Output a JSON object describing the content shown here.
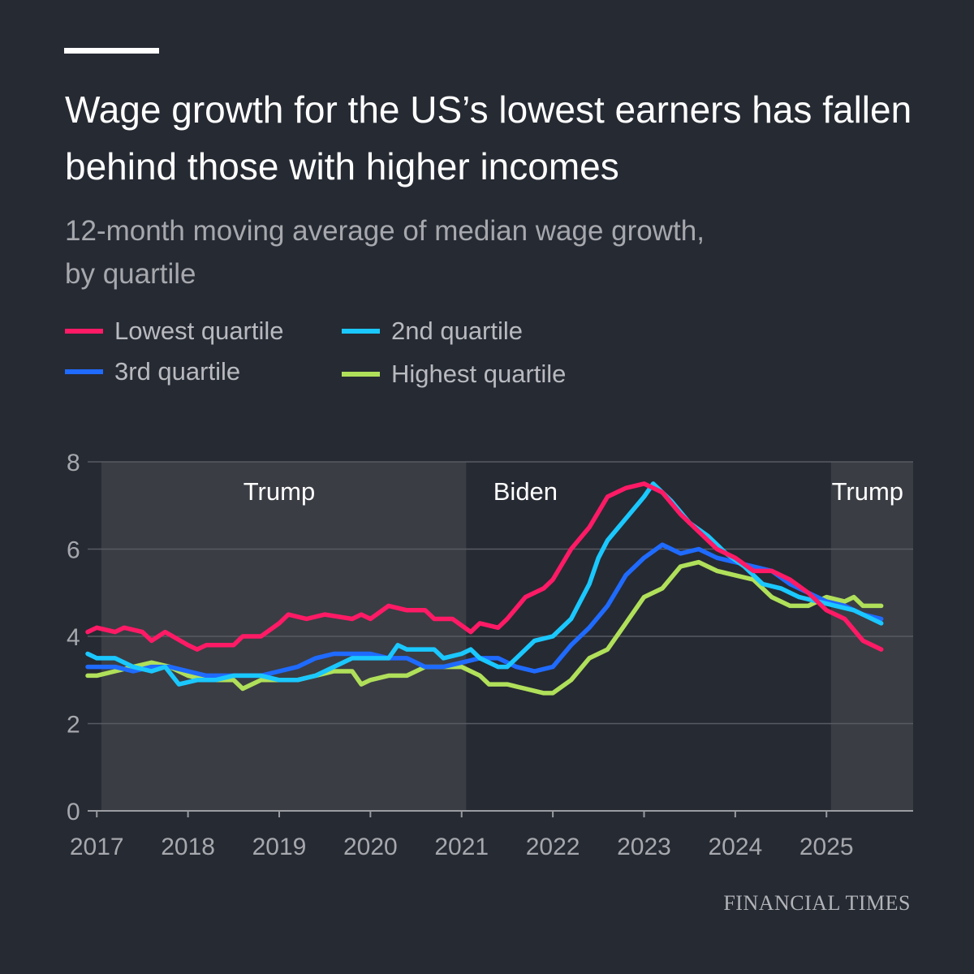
{
  "header": {
    "title": "Wage growth for the US’s lowest earners has fallen behind those with higher incomes",
    "subtitle_line1": "12-month moving average of median wage growth,",
    "subtitle_line2": "by quartile"
  },
  "source": "FINANCIAL TIMES",
  "colors": {
    "background": "#262a33",
    "lowest": "#ff1a66",
    "second": "#1ac8ff",
    "third": "#1f6bff",
    "highest": "#b0e05a",
    "shade": "#3a3d44"
  },
  "chart_data": {
    "type": "line",
    "title": "Wage growth for the US’s lowest earners has fallen behind those with higher incomes",
    "subtitle": "12-month moving average of median wage growth, by quartile",
    "xlabel": "",
    "ylabel": "",
    "xlim": [
      2016.9,
      2025.95
    ],
    "ylim": [
      0,
      8
    ],
    "x_ticks": [
      2017,
      2018,
      2019,
      2020,
      2021,
      2022,
      2023,
      2024,
      2025
    ],
    "y_ticks": [
      0,
      2,
      4,
      6,
      8
    ],
    "grid": "horizontal",
    "legend_position": "top-left",
    "periods": [
      {
        "label": "Trump",
        "start": 2017.05,
        "end": 2021.05,
        "shaded": true
      },
      {
        "label": "Biden",
        "start": 2021.05,
        "end": 2025.05,
        "shaded": false
      },
      {
        "label": "Trump",
        "start": 2025.05,
        "end": 2025.95,
        "shaded": true
      }
    ],
    "series": [
      {
        "name": "Lowest quartile",
        "color": "#ff1a66",
        "points": [
          [
            2016.9,
            4.1
          ],
          [
            2017.0,
            4.2
          ],
          [
            2017.2,
            4.1
          ],
          [
            2017.3,
            4.2
          ],
          [
            2017.5,
            4.1
          ],
          [
            2017.6,
            3.9
          ],
          [
            2017.75,
            4.1
          ],
          [
            2018.0,
            3.8
          ],
          [
            2018.1,
            3.7
          ],
          [
            2018.2,
            3.8
          ],
          [
            2018.5,
            3.8
          ],
          [
            2018.6,
            4.0
          ],
          [
            2018.8,
            4.0
          ],
          [
            2019.0,
            4.3
          ],
          [
            2019.1,
            4.5
          ],
          [
            2019.3,
            4.4
          ],
          [
            2019.5,
            4.5
          ],
          [
            2019.8,
            4.4
          ],
          [
            2019.9,
            4.5
          ],
          [
            2020.0,
            4.4
          ],
          [
            2020.2,
            4.7
          ],
          [
            2020.4,
            4.6
          ],
          [
            2020.6,
            4.6
          ],
          [
            2020.7,
            4.4
          ],
          [
            2020.9,
            4.4
          ],
          [
            2021.1,
            4.1
          ],
          [
            2021.2,
            4.3
          ],
          [
            2021.4,
            4.2
          ],
          [
            2021.5,
            4.4
          ],
          [
            2021.7,
            4.9
          ],
          [
            2021.9,
            5.1
          ],
          [
            2022.0,
            5.3
          ],
          [
            2022.2,
            6.0
          ],
          [
            2022.4,
            6.5
          ],
          [
            2022.6,
            7.2
          ],
          [
            2022.8,
            7.4
          ],
          [
            2023.0,
            7.5
          ],
          [
            2023.2,
            7.3
          ],
          [
            2023.4,
            6.8
          ],
          [
            2023.6,
            6.4
          ],
          [
            2023.8,
            6.0
          ],
          [
            2024.0,
            5.8
          ],
          [
            2024.2,
            5.5
          ],
          [
            2024.4,
            5.5
          ],
          [
            2024.6,
            5.3
          ],
          [
            2024.8,
            5.0
          ],
          [
            2025.0,
            4.6
          ],
          [
            2025.2,
            4.4
          ],
          [
            2025.4,
            3.9
          ],
          [
            2025.6,
            3.7
          ]
        ]
      },
      {
        "name": "2nd quartile",
        "color": "#1ac8ff",
        "points": [
          [
            2016.9,
            3.6
          ],
          [
            2017.0,
            3.5
          ],
          [
            2017.2,
            3.5
          ],
          [
            2017.4,
            3.3
          ],
          [
            2017.6,
            3.2
          ],
          [
            2017.75,
            3.3
          ],
          [
            2017.9,
            2.9
          ],
          [
            2018.1,
            3.0
          ],
          [
            2018.3,
            3.0
          ],
          [
            2018.5,
            3.1
          ],
          [
            2018.8,
            3.1
          ],
          [
            2019.0,
            3.0
          ],
          [
            2019.2,
            3.0
          ],
          [
            2019.4,
            3.1
          ],
          [
            2019.6,
            3.3
          ],
          [
            2019.8,
            3.5
          ],
          [
            2020.0,
            3.5
          ],
          [
            2020.2,
            3.5
          ],
          [
            2020.3,
            3.8
          ],
          [
            2020.4,
            3.7
          ],
          [
            2020.7,
            3.7
          ],
          [
            2020.8,
            3.5
          ],
          [
            2021.0,
            3.6
          ],
          [
            2021.1,
            3.7
          ],
          [
            2021.2,
            3.5
          ],
          [
            2021.4,
            3.3
          ],
          [
            2021.5,
            3.3
          ],
          [
            2021.6,
            3.5
          ],
          [
            2021.8,
            3.9
          ],
          [
            2022.0,
            4.0
          ],
          [
            2022.2,
            4.4
          ],
          [
            2022.4,
            5.2
          ],
          [
            2022.5,
            5.8
          ],
          [
            2022.6,
            6.2
          ],
          [
            2022.8,
            6.7
          ],
          [
            2023.0,
            7.2
          ],
          [
            2023.1,
            7.5
          ],
          [
            2023.3,
            7.1
          ],
          [
            2023.5,
            6.6
          ],
          [
            2023.7,
            6.3
          ],
          [
            2023.9,
            5.9
          ],
          [
            2024.1,
            5.6
          ],
          [
            2024.3,
            5.2
          ],
          [
            2024.5,
            5.1
          ],
          [
            2024.7,
            4.9
          ],
          [
            2024.9,
            4.8
          ],
          [
            2025.1,
            4.7
          ],
          [
            2025.3,
            4.6
          ],
          [
            2025.6,
            4.3
          ]
        ]
      },
      {
        "name": "3rd quartile",
        "color": "#1f6bff",
        "points": [
          [
            2016.9,
            3.3
          ],
          [
            2017.2,
            3.3
          ],
          [
            2017.4,
            3.2
          ],
          [
            2017.6,
            3.3
          ],
          [
            2017.8,
            3.3
          ],
          [
            2018.0,
            3.2
          ],
          [
            2018.2,
            3.1
          ],
          [
            2018.5,
            3.1
          ],
          [
            2018.8,
            3.1
          ],
          [
            2019.0,
            3.2
          ],
          [
            2019.2,
            3.3
          ],
          [
            2019.4,
            3.5
          ],
          [
            2019.6,
            3.6
          ],
          [
            2019.8,
            3.6
          ],
          [
            2020.0,
            3.6
          ],
          [
            2020.2,
            3.5
          ],
          [
            2020.4,
            3.5
          ],
          [
            2020.6,
            3.3
          ],
          [
            2020.8,
            3.3
          ],
          [
            2021.0,
            3.4
          ],
          [
            2021.2,
            3.5
          ],
          [
            2021.4,
            3.5
          ],
          [
            2021.6,
            3.3
          ],
          [
            2021.8,
            3.2
          ],
          [
            2022.0,
            3.3
          ],
          [
            2022.2,
            3.8
          ],
          [
            2022.4,
            4.2
          ],
          [
            2022.6,
            4.7
          ],
          [
            2022.8,
            5.4
          ],
          [
            2023.0,
            5.8
          ],
          [
            2023.2,
            6.1
          ],
          [
            2023.4,
            5.9
          ],
          [
            2023.6,
            6.0
          ],
          [
            2023.8,
            5.8
          ],
          [
            2024.0,
            5.7
          ],
          [
            2024.2,
            5.6
          ],
          [
            2024.4,
            5.5
          ],
          [
            2024.6,
            5.2
          ],
          [
            2024.8,
            5.0
          ],
          [
            2025.0,
            4.8
          ],
          [
            2025.2,
            4.7
          ],
          [
            2025.4,
            4.5
          ],
          [
            2025.6,
            4.4
          ]
        ]
      },
      {
        "name": "Highest quartile",
        "color": "#b0e05a",
        "points": [
          [
            2016.9,
            3.1
          ],
          [
            2017.0,
            3.1
          ],
          [
            2017.2,
            3.2
          ],
          [
            2017.4,
            3.3
          ],
          [
            2017.6,
            3.4
          ],
          [
            2017.8,
            3.3
          ],
          [
            2018.0,
            3.1
          ],
          [
            2018.2,
            3.0
          ],
          [
            2018.5,
            3.0
          ],
          [
            2018.6,
            2.8
          ],
          [
            2018.8,
            3.0
          ],
          [
            2019.0,
            3.0
          ],
          [
            2019.2,
            3.0
          ],
          [
            2019.4,
            3.1
          ],
          [
            2019.6,
            3.2
          ],
          [
            2019.8,
            3.2
          ],
          [
            2019.9,
            2.9
          ],
          [
            2020.0,
            3.0
          ],
          [
            2020.2,
            3.1
          ],
          [
            2020.4,
            3.1
          ],
          [
            2020.6,
            3.3
          ],
          [
            2020.8,
            3.3
          ],
          [
            2021.0,
            3.3
          ],
          [
            2021.2,
            3.1
          ],
          [
            2021.3,
            2.9
          ],
          [
            2021.5,
            2.9
          ],
          [
            2021.7,
            2.8
          ],
          [
            2021.9,
            2.7
          ],
          [
            2022.0,
            2.7
          ],
          [
            2022.2,
            3.0
          ],
          [
            2022.4,
            3.5
          ],
          [
            2022.6,
            3.7
          ],
          [
            2022.8,
            4.3
          ],
          [
            2023.0,
            4.9
          ],
          [
            2023.2,
            5.1
          ],
          [
            2023.4,
            5.6
          ],
          [
            2023.6,
            5.7
          ],
          [
            2023.8,
            5.5
          ],
          [
            2024.0,
            5.4
          ],
          [
            2024.2,
            5.3
          ],
          [
            2024.4,
            4.9
          ],
          [
            2024.6,
            4.7
          ],
          [
            2024.8,
            4.7
          ],
          [
            2025.0,
            4.9
          ],
          [
            2025.2,
            4.8
          ],
          [
            2025.3,
            4.9
          ],
          [
            2025.4,
            4.7
          ],
          [
            2025.6,
            4.7
          ]
        ]
      }
    ]
  }
}
